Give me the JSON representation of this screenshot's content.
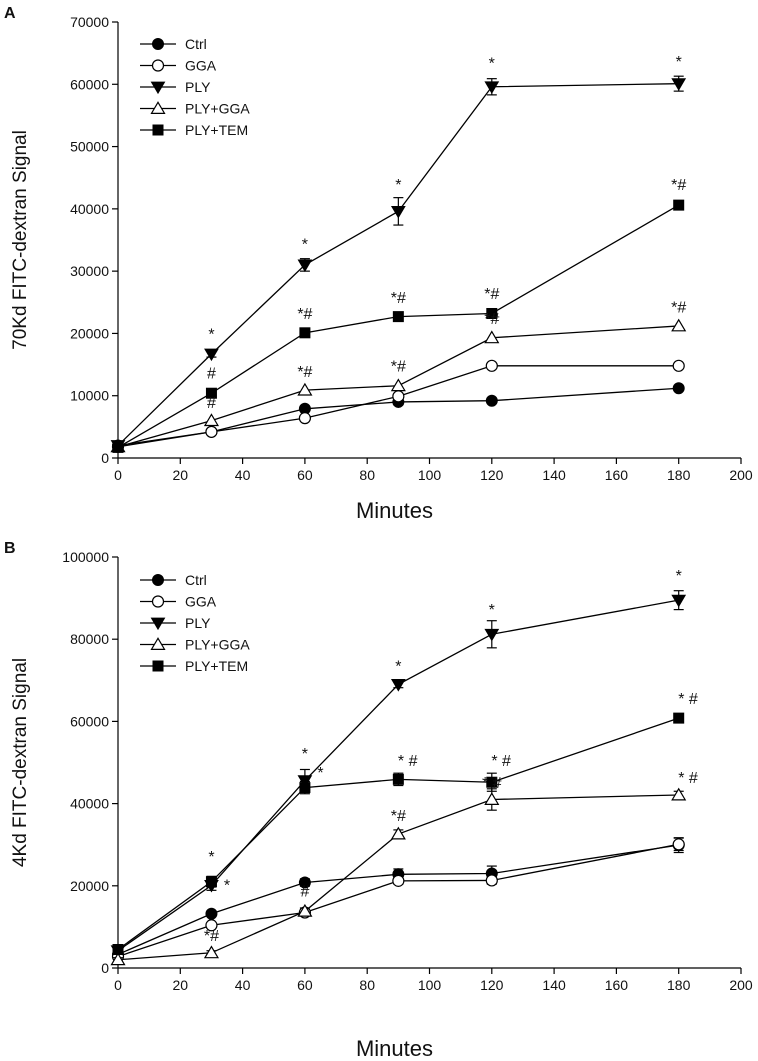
{
  "chart_data": [
    {
      "panel": "A",
      "type": "line",
      "xlabel": "Minutes",
      "ylabel": "70Kd FITC-dextran Signal",
      "xlim": [
        0,
        200
      ],
      "ylim": [
        0,
        70000
      ],
      "xticks": [
        "0",
        "20",
        "40",
        "60",
        "80",
        "100",
        "120",
        "140",
        "160",
        "180",
        "200"
      ],
      "yticks": [
        "0",
        "10000",
        "20000",
        "30000",
        "40000",
        "50000",
        "60000",
        "70000"
      ],
      "legend_position": "top-left",
      "x": [
        0,
        30,
        60,
        90,
        120,
        180
      ],
      "series": [
        {
          "name": "Ctrl",
          "marker": "circle-filled",
          "values": [
            2000,
            4200,
            7900,
            9000,
            9200,
            11200
          ],
          "err": [
            0,
            0,
            0,
            0,
            0,
            0
          ]
        },
        {
          "name": "GGA",
          "marker": "circle-open",
          "values": [
            1800,
            4200,
            6400,
            9900,
            14800,
            14800
          ],
          "err": [
            0,
            0,
            0,
            0,
            0,
            0
          ]
        },
        {
          "name": "PLY",
          "marker": "triangle-down-filled",
          "values": [
            2000,
            16700,
            31000,
            39600,
            59600,
            60100
          ],
          "err": [
            0,
            500,
            1000,
            2200,
            1300,
            1200
          ]
        },
        {
          "name": "PLY+GGA",
          "marker": "triangle-up-open",
          "values": [
            1800,
            6000,
            10900,
            11600,
            19300,
            21200
          ],
          "err": [
            0,
            0,
            0,
            0,
            0,
            0
          ]
        },
        {
          "name": "PLY+TEM",
          "marker": "square-filled",
          "values": [
            1700,
            10400,
            20100,
            22700,
            23200,
            40600
          ],
          "err": [
            0,
            0,
            0,
            0,
            0,
            0
          ]
        }
      ],
      "annotations": [
        {
          "x": 30,
          "y": 19000,
          "text": "*"
        },
        {
          "x": 30,
          "y": 12800,
          "text": "#"
        },
        {
          "x": 30,
          "y": 8000,
          "text": "#"
        },
        {
          "x": 60,
          "y": 33500,
          "text": "*"
        },
        {
          "x": 60,
          "y": 22300,
          "text": "*#"
        },
        {
          "x": 60,
          "y": 13000,
          "text": "*#"
        },
        {
          "x": 90,
          "y": 43000,
          "text": "*"
        },
        {
          "x": 90,
          "y": 24900,
          "text": "*#"
        },
        {
          "x": 90,
          "y": 13900,
          "text": "*#"
        },
        {
          "x": 120,
          "y": 62500,
          "text": "*"
        },
        {
          "x": 120,
          "y": 25500,
          "text": "*#"
        },
        {
          "x": 120,
          "y": 21500,
          "text": "*#"
        },
        {
          "x": 180,
          "y": 62800,
          "text": "*"
        },
        {
          "x": 180,
          "y": 43000,
          "text": "*#"
        },
        {
          "x": 180,
          "y": 23400,
          "text": "*#"
        }
      ]
    },
    {
      "panel": "B",
      "type": "line",
      "xlabel": "Minutes",
      "ylabel": "4Kd FITC-dextran Signal",
      "xlim": [
        0,
        200
      ],
      "ylim": [
        0,
        100000
      ],
      "xticks": [
        "0",
        "20",
        "40",
        "60",
        "80",
        "100",
        "120",
        "140",
        "160",
        "180",
        "200"
      ],
      "yticks": [
        "0",
        "20000",
        "40000",
        "60000",
        "80000",
        "100000"
      ],
      "legend_position": "top-left",
      "x": [
        0,
        30,
        60,
        90,
        120,
        180
      ],
      "series": [
        {
          "name": "Ctrl",
          "marker": "circle-filled",
          "values": [
            3300,
            13200,
            20800,
            22800,
            23000,
            29900
          ],
          "err": [
            800,
            600,
            900,
            1300,
            1800,
            1800
          ]
        },
        {
          "name": "GGA",
          "marker": "circle-open",
          "values": [
            2800,
            10400,
            13500,
            21200,
            21300,
            30100
          ],
          "err": [
            600,
            600,
            600,
            800,
            900,
            1500
          ]
        },
        {
          "name": "PLY",
          "marker": "triangle-down-filled",
          "values": [
            4200,
            20100,
            45600,
            69000,
            81200,
            89500
          ],
          "err": [
            700,
            1200,
            2700,
            800,
            3300,
            2300
          ]
        },
        {
          "name": "PLY+GGA",
          "marker": "triangle-up-open",
          "values": [
            2000,
            3700,
            13800,
            32600,
            41000,
            42100
          ],
          "err": [
            500,
            500,
            800,
            1000,
            2600,
            900
          ]
        },
        {
          "name": "PLY+TEM",
          "marker": "square-filled",
          "values": [
            4500,
            21000,
            43900,
            45900,
            45200,
            60800
          ],
          "err": [
            800,
            1300,
            1500,
            1500,
            2200,
            1000
          ]
        }
      ],
      "annotations": [
        {
          "x": 30,
          "y": 25800,
          "text": "*"
        },
        {
          "x": 35,
          "y": 18800,
          "text": "*"
        },
        {
          "x": 30,
          "y": 6600,
          "text": "*#"
        },
        {
          "x": 60,
          "y": 50800,
          "text": "*"
        },
        {
          "x": 65,
          "y": 46200,
          "text": "*"
        },
        {
          "x": 60,
          "y": 17400,
          "text": "#"
        },
        {
          "x": 90,
          "y": 72200,
          "text": "*"
        },
        {
          "x": 93,
          "y": 49200,
          "text": "* #"
        },
        {
          "x": 90,
          "y": 35800,
          "text": "*#"
        },
        {
          "x": 120,
          "y": 85900,
          "text": "*"
        },
        {
          "x": 123,
          "y": 49200,
          "text": "* #"
        },
        {
          "x": 120,
          "y": 43800,
          "text": "* #"
        },
        {
          "x": 180,
          "y": 94200,
          "text": "*"
        },
        {
          "x": 183,
          "y": 64200,
          "text": "* #"
        },
        {
          "x": 183,
          "y": 45000,
          "text": "* #"
        }
      ]
    }
  ]
}
